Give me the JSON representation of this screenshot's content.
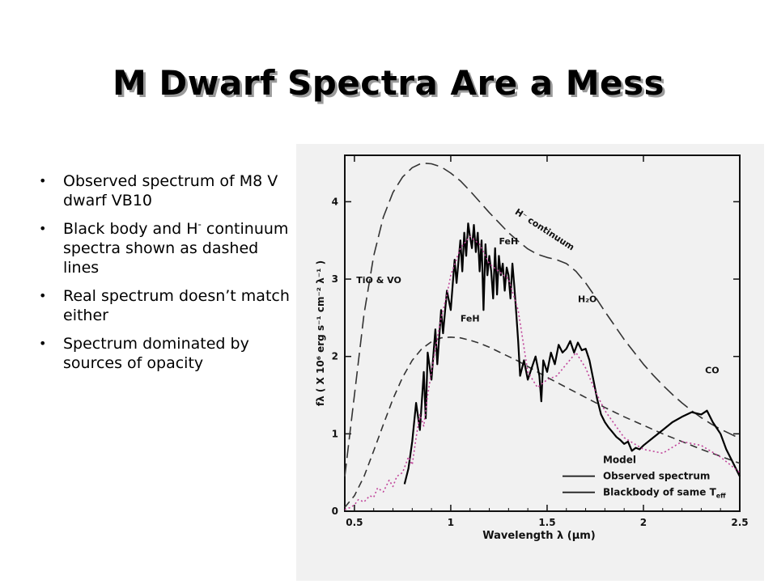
{
  "slide": {
    "title": "M Dwarf Spectra Are a Mess",
    "bullets": [
      {
        "text": "Observed spectrum of M8 V dwarf VB10"
      },
      {
        "text": "Black body and H",
        "sup": "-",
        "text_after": " continuum spectra shown as dashed lines"
      },
      {
        "text": "Real spectrum doesn’t match either"
      },
      {
        "text": "Spectrum dominated by sources of opacity"
      }
    ]
  },
  "chart_data": {
    "type": "line",
    "xlabel": "Wavelength λ (μm)",
    "ylabel": "fλ ( X 10⁶ erg s⁻¹ cm⁻² λ⁻¹ )",
    "xlim": [
      0.45,
      2.5
    ],
    "ylim": [
      0,
      4.6
    ],
    "x_ticks": [
      {
        "value": 0.5,
        "label": "0.5"
      },
      {
        "value": 1.0,
        "label": "1"
      },
      {
        "value": 1.5,
        "label": "1.5"
      },
      {
        "value": 2.0,
        "label": "2"
      },
      {
        "value": 2.5,
        "label": "2.5"
      }
    ],
    "y_ticks": [
      {
        "value": 0,
        "label": "0"
      },
      {
        "value": 1,
        "label": "1"
      },
      {
        "value": 2,
        "label": "2"
      },
      {
        "value": 3,
        "label": "3"
      },
      {
        "value": 4,
        "label": "4"
      }
    ],
    "annotations": [
      {
        "text": "H⁻ continuum",
        "x": 1.33,
        "y": 3.85,
        "rotate": 33
      },
      {
        "text": "TiO & VO",
        "x": 0.51,
        "y": 2.95
      },
      {
        "text": "FeH",
        "x": 1.25,
        "y": 3.45
      },
      {
        "text": "FeH",
        "x": 1.05,
        "y": 2.45
      },
      {
        "text": "H₂O",
        "x": 1.66,
        "y": 2.7
      },
      {
        "text": "CO",
        "x": 2.32,
        "y": 1.78
      }
    ],
    "legend": {
      "position": "bottom-right",
      "entries": [
        {
          "label": "Model",
          "style": "none"
        },
        {
          "label": "Observed spectrum",
          "style": "solid"
        },
        {
          "label": "Blackbody of same T",
          "sub": "eff",
          "style": "dashed"
        }
      ]
    },
    "series": [
      {
        "name": "H⁻ continuum",
        "style": "dash-long",
        "color": "#333333",
        "x": [
          0.45,
          0.5,
          0.55,
          0.6,
          0.65,
          0.7,
          0.75,
          0.8,
          0.85,
          0.9,
          0.95,
          1.0,
          1.05,
          1.1,
          1.15,
          1.2,
          1.25,
          1.3,
          1.35,
          1.4,
          1.45,
          1.5,
          1.55,
          1.6,
          1.65,
          1.7,
          1.75,
          1.8,
          1.85,
          1.9,
          1.95,
          2.0,
          2.05,
          2.1,
          2.15,
          2.2,
          2.25,
          2.3,
          2.35,
          2.4,
          2.45,
          2.5
        ],
        "y": [
          0.45,
          1.5,
          2.55,
          3.3,
          3.8,
          4.12,
          4.32,
          4.44,
          4.5,
          4.49,
          4.45,
          4.37,
          4.27,
          4.14,
          4.0,
          3.86,
          3.73,
          3.6,
          3.49,
          3.39,
          3.32,
          3.28,
          3.25,
          3.2,
          3.1,
          2.95,
          2.77,
          2.58,
          2.4,
          2.22,
          2.06,
          1.9,
          1.76,
          1.63,
          1.51,
          1.4,
          1.3,
          1.21,
          1.13,
          1.06,
          1.0,
          0.94
        ]
      },
      {
        "name": "Blackbody of same Teff",
        "style": "dash",
        "color": "#333333",
        "x": [
          0.45,
          0.5,
          0.55,
          0.6,
          0.65,
          0.7,
          0.75,
          0.8,
          0.85,
          0.9,
          0.95,
          1.0,
          1.05,
          1.1,
          1.15,
          1.2,
          1.25,
          1.3,
          1.35,
          1.4,
          1.45,
          1.5,
          1.6,
          1.7,
          1.8,
          1.9,
          2.0,
          2.1,
          2.2,
          2.3,
          2.4,
          2.5
        ],
        "y": [
          0.05,
          0.2,
          0.45,
          0.78,
          1.12,
          1.45,
          1.73,
          1.95,
          2.1,
          2.19,
          2.24,
          2.25,
          2.24,
          2.21,
          2.17,
          2.12,
          2.06,
          2.0,
          1.94,
          1.87,
          1.8,
          1.73,
          1.6,
          1.47,
          1.34,
          1.22,
          1.11,
          1.0,
          0.9,
          0.8,
          0.71,
          0.62
        ]
      },
      {
        "name": "Observed spectrum",
        "style": "solid",
        "color": "#000000",
        "x": [
          0.76,
          0.78,
          0.8,
          0.82,
          0.84,
          0.86,
          0.87,
          0.88,
          0.9,
          0.92,
          0.93,
          0.95,
          0.96,
          0.98,
          1.0,
          1.02,
          1.03,
          1.05,
          1.06,
          1.07,
          1.08,
          1.09,
          1.1,
          1.11,
          1.12,
          1.13,
          1.14,
          1.15,
          1.16,
          1.17,
          1.18,
          1.19,
          1.2,
          1.21,
          1.22,
          1.23,
          1.24,
          1.25,
          1.26,
          1.27,
          1.28,
          1.29,
          1.3,
          1.31,
          1.32,
          1.33,
          1.34,
          1.35,
          1.36,
          1.38,
          1.4,
          1.42,
          1.44,
          1.46,
          1.47,
          1.48,
          1.5,
          1.52,
          1.54,
          1.56,
          1.58,
          1.6,
          1.62,
          1.64,
          1.66,
          1.68,
          1.7,
          1.72,
          1.74,
          1.76,
          1.78,
          1.8,
          1.82,
          1.84,
          1.86,
          1.88,
          1.9,
          1.92,
          1.94,
          1.96,
          1.98,
          2.0,
          2.05,
          2.1,
          2.15,
          2.2,
          2.25,
          2.3,
          2.33,
          2.36,
          2.4,
          2.43,
          2.46,
          2.5
        ],
        "y": [
          0.35,
          0.55,
          0.9,
          1.4,
          1.05,
          1.8,
          1.2,
          2.05,
          1.7,
          2.35,
          1.9,
          2.6,
          2.3,
          2.85,
          2.6,
          3.25,
          2.95,
          3.5,
          3.1,
          3.6,
          3.3,
          3.72,
          3.55,
          3.4,
          3.7,
          3.35,
          3.6,
          3.1,
          3.5,
          2.6,
          3.45,
          3.05,
          3.3,
          3.1,
          2.75,
          3.4,
          2.8,
          3.3,
          3.05,
          3.2,
          2.85,
          3.15,
          3.05,
          2.75,
          3.2,
          2.9,
          2.55,
          2.2,
          1.75,
          1.95,
          1.7,
          1.85,
          2.0,
          1.75,
          1.42,
          1.95,
          1.8,
          2.05,
          1.9,
          2.15,
          2.05,
          2.1,
          2.2,
          2.05,
          2.18,
          2.08,
          2.1,
          1.95,
          1.7,
          1.45,
          1.25,
          1.15,
          1.08,
          1.02,
          0.96,
          0.92,
          0.87,
          0.9,
          0.78,
          0.82,
          0.8,
          0.85,
          0.95,
          1.05,
          1.15,
          1.22,
          1.28,
          1.25,
          1.3,
          1.15,
          1.0,
          0.8,
          0.65,
          0.45
        ]
      },
      {
        "name": "Model",
        "style": "dotted",
        "color": "#c0449a",
        "x": [
          0.45,
          0.48,
          0.5,
          0.52,
          0.55,
          0.58,
          0.6,
          0.62,
          0.65,
          0.68,
          0.7,
          0.72,
          0.75,
          0.78,
          0.8,
          0.82,
          0.84,
          0.86,
          0.88,
          0.9,
          0.92,
          0.95,
          0.98,
          1.0,
          1.05,
          1.1,
          1.15,
          1.2,
          1.25,
          1.3,
          1.35,
          1.4,
          1.45,
          1.5,
          1.55,
          1.6,
          1.65,
          1.7,
          1.75,
          1.8,
          1.9,
          2.0,
          2.1,
          2.2,
          2.3,
          2.4,
          2.5
        ],
        "y": [
          0.02,
          0.05,
          0.08,
          0.15,
          0.12,
          0.2,
          0.18,
          0.3,
          0.25,
          0.4,
          0.32,
          0.45,
          0.5,
          0.7,
          0.6,
          0.95,
          1.25,
          1.1,
          1.5,
          1.8,
          2.1,
          2.5,
          2.8,
          3.05,
          3.4,
          3.55,
          3.45,
          3.2,
          3.1,
          3.0,
          2.6,
          1.8,
          1.6,
          1.7,
          1.75,
          1.9,
          2.05,
          1.85,
          1.55,
          1.3,
          0.95,
          0.8,
          0.75,
          0.9,
          0.85,
          0.7,
          0.5
        ]
      }
    ]
  }
}
